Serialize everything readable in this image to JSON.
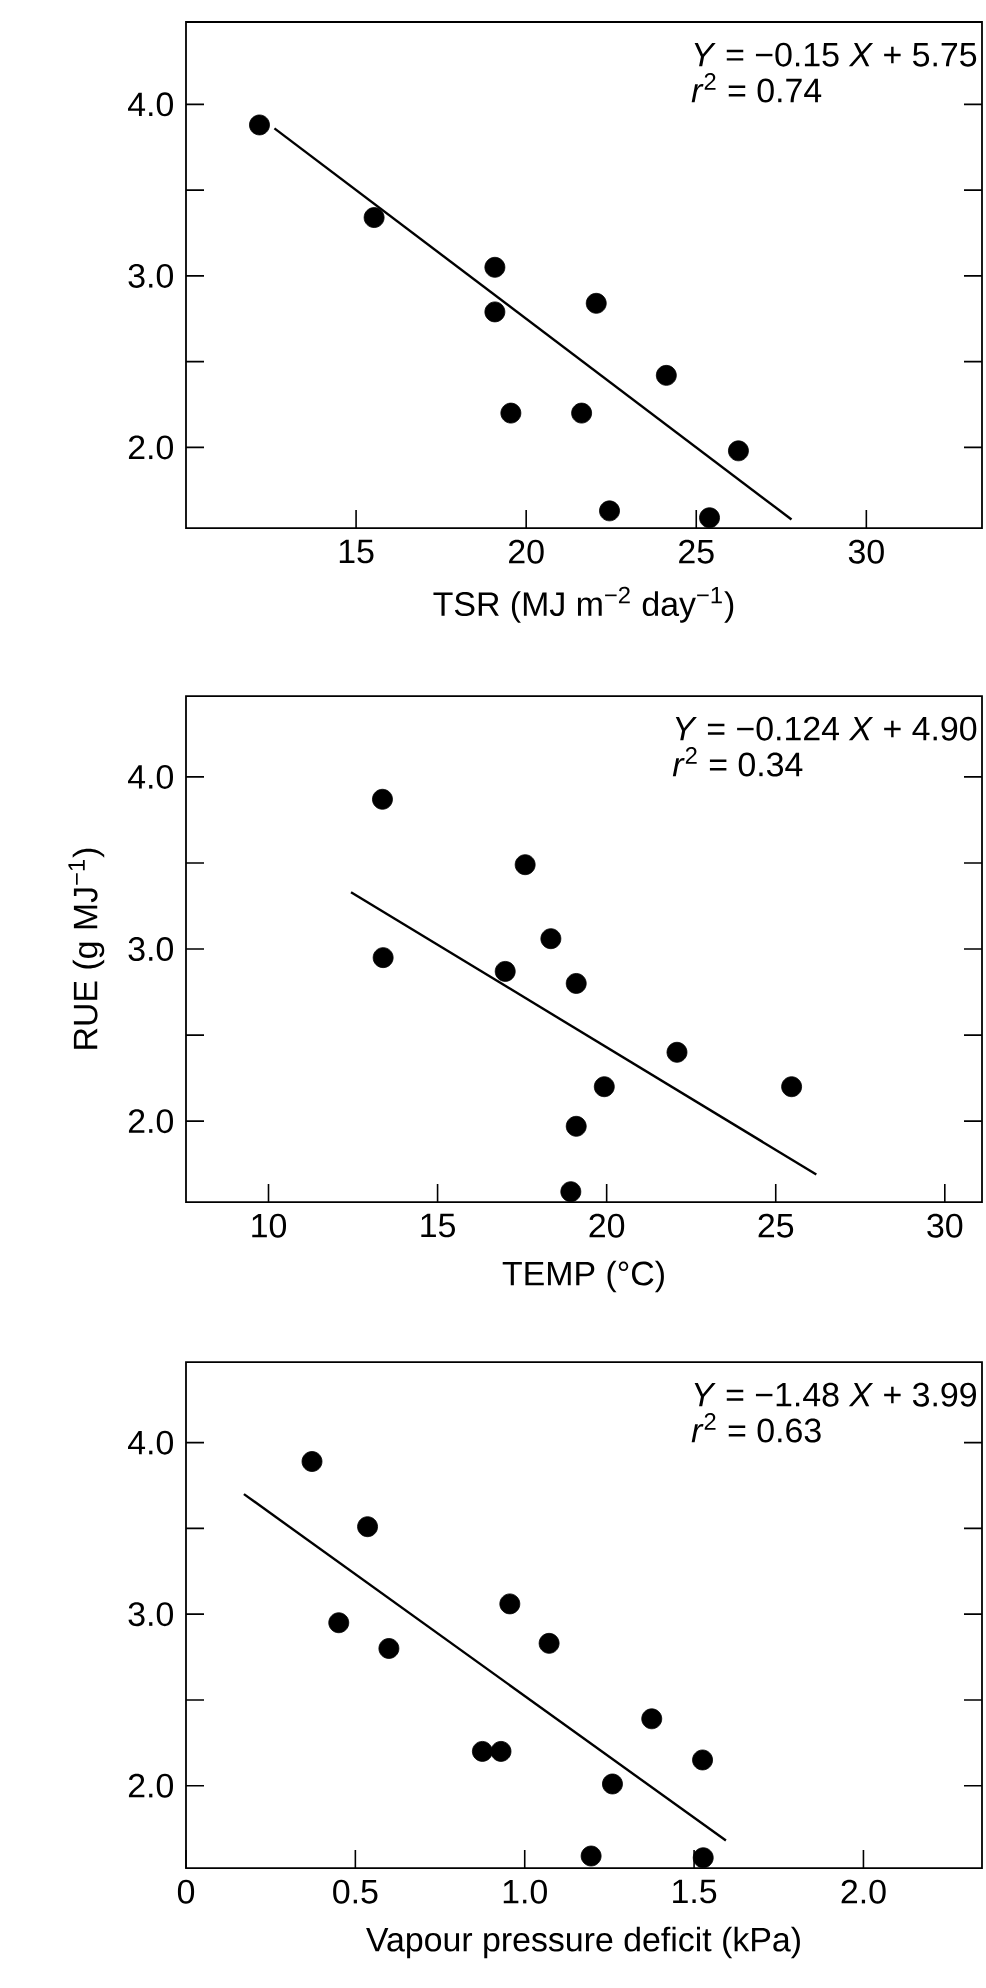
{
  "chart_data": [
    {
      "type": "scatter",
      "xlabel": "TSR (MJ m$^{−2}$ day$^{−1}$)",
      "xlim": [
        10,
        33.4
      ],
      "ylim": [
        1.53,
        4.48
      ],
      "xticks": [
        15,
        20,
        25,
        30
      ],
      "yticks": [
        {
          "value": 2,
          "label": "2.0"
        },
        {
          "value": 2.5,
          "label": null
        },
        {
          "value": 3,
          "label": "3.0"
        },
        {
          "value": 3.5,
          "label": null
        },
        {
          "value": 4,
          "label": "4.0"
        }
      ],
      "annotations": [
        "*Y* = −0.15 *X* + 5.75",
        "*r*$^{2}$ = 0.74"
      ],
      "series": [
        {
          "marker": "circle",
          "color": "#000000",
          "x": [
            12.16,
            15.53,
            19.08,
            19.08,
            19.55,
            22.06,
            21.63,
            24.12,
            26.24,
            22.45,
            25.39
          ],
          "values": [
            3.88,
            3.34,
            3.05,
            2.79,
            2.2,
            2.84,
            2.2,
            2.42,
            1.98,
            1.63,
            1.59
          ]
        },
        {
          "type": "line",
          "marker": "none",
          "color": "#000000",
          "x": [
            12.6,
            27.8
          ],
          "values": [
            3.86,
            1.58
          ]
        }
      ]
    },
    {
      "type": "scatter",
      "xlabel": "TEMP (°C)",
      "ylabel": "RUE (g MJ$^{−1}$)",
      "xlim": [
        7.56,
        31.1
      ],
      "ylim": [
        1.53,
        4.47
      ],
      "xticks": [
        10,
        15,
        20,
        25,
        30
      ],
      "yticks": [
        {
          "value": 2,
          "label": "2.0"
        },
        {
          "value": 2.5,
          "label": null
        },
        {
          "value": 3,
          "label": "3.0"
        },
        {
          "value": 3.5,
          "label": null
        },
        {
          "value": 4,
          "label": "4.0"
        }
      ],
      "annotations": [
        "*Y* = −0.124 *X* + 4.90",
        "*r*$^{2}$ = 0.34"
      ],
      "series": [
        {
          "marker": "circle",
          "color": "#000000",
          "x": [
            13.37,
            13.39,
            17.59,
            17.0,
            18.35,
            19.1,
            22.08,
            19.93,
            25.47,
            19.1,
            18.94
          ],
          "values": [
            3.87,
            2.95,
            3.49,
            2.87,
            3.06,
            2.8,
            2.4,
            2.2,
            2.2,
            1.97,
            1.59
          ]
        },
        {
          "type": "line",
          "marker": "none",
          "color": "#000000",
          "x": [
            12.44,
            26.2
          ],
          "values": [
            3.33,
            1.69
          ]
        }
      ]
    },
    {
      "type": "scatter",
      "xlabel": "Vapour pressure deficit (kPa)",
      "xlim": [
        0,
        2.35
      ],
      "ylim": [
        1.52,
        4.47
      ],
      "xticks": [
        0,
        0.5,
        {
          "value": 1,
          "label": "1.0"
        },
        1.5,
        {
          "value": 2,
          "label": "2.0"
        }
      ],
      "yticks": [
        {
          "value": 2,
          "label": "2.0"
        },
        {
          "value": 2.5,
          "label": null
        },
        {
          "value": 3,
          "label": "3.0"
        },
        {
          "value": 3.5,
          "label": null
        },
        {
          "value": 4,
          "label": "4.0"
        }
      ],
      "annotations": [
        "*Y* = −1.48 *X* + 3.99",
        "*r*$^{2}$ = 0.63"
      ],
      "series": [
        {
          "marker": "circle",
          "color": "#000000",
          "x": [
            0.372,
            0.536,
            0.451,
            0.599,
            0.956,
            1.072,
            0.875,
            0.93,
            1.375,
            1.525,
            1.259,
            1.196,
            1.527
          ],
          "values": [
            3.89,
            3.51,
            2.95,
            2.8,
            3.06,
            2.83,
            2.2,
            2.2,
            2.39,
            2.15,
            2.01,
            1.59,
            1.58
          ]
        },
        {
          "type": "line",
          "marker": "none",
          "color": "#000000",
          "x": [
            0.171,
            1.594
          ],
          "values": [
            3.7,
            1.68
          ]
        }
      ]
    }
  ]
}
